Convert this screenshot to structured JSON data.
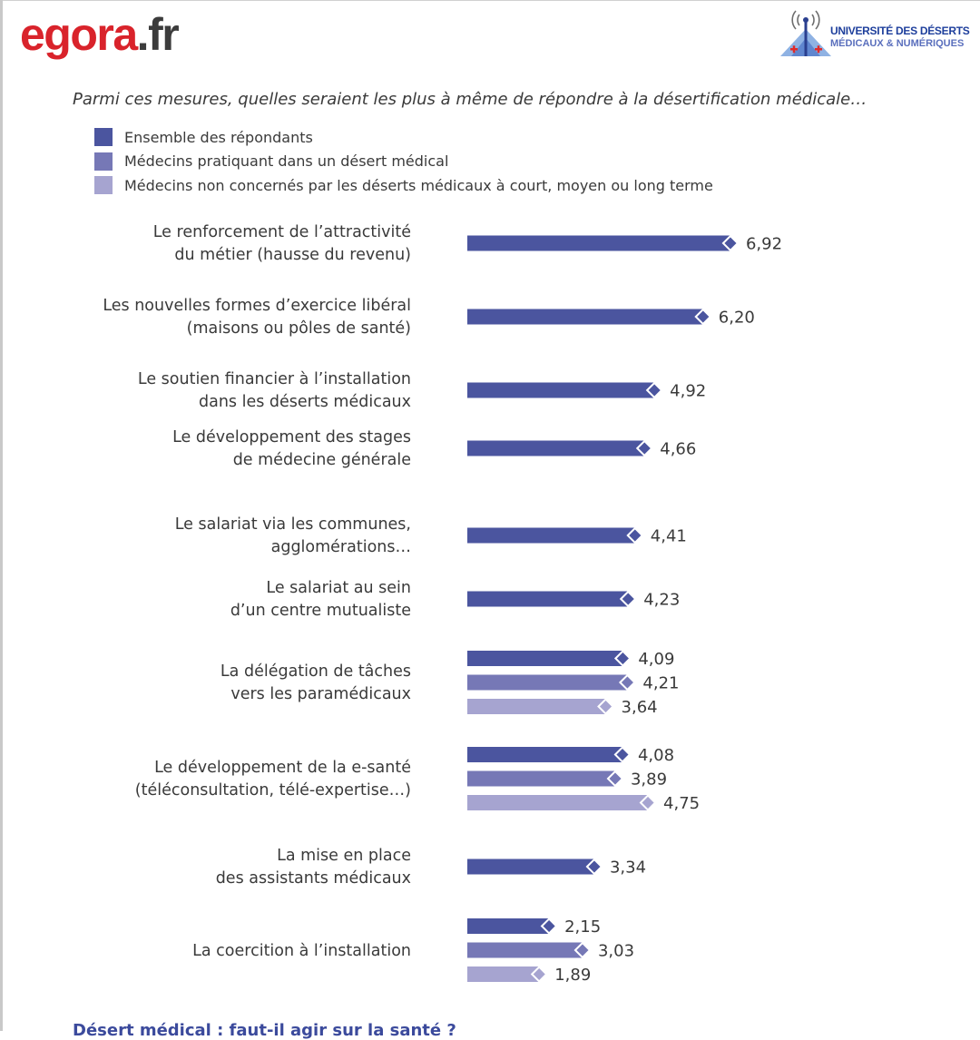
{
  "header": {
    "brand_red": "egora",
    "brand_dark": ".fr",
    "logo_line1": "UNIVERSITÉ DES DÉSERTS",
    "logo_line2": "MÉDICAUX & NUMÉRIQUES"
  },
  "colors": {
    "brand": "#d9232b",
    "series1": "#4b559f",
    "series2": "#7678b6",
    "series3": "#a6a4d0"
  },
  "footer": {
    "cut_text": "Désert médical : faut-il agir sur la santé ?"
  },
  "chart_data": {
    "type": "bar",
    "orientation": "horizontal",
    "title": "Parmi ces mesures, quelles seraient les plus à même de répondre à la désertification médicale…",
    "legend_position": "top-left",
    "grid": false,
    "series": [
      {
        "name": "Ensemble des répondants",
        "color": "#4b559f"
      },
      {
        "name": "Médecins pratiquant dans un désert médical",
        "color": "#7678b6"
      },
      {
        "name": "Médecins non concernés par les déserts médicaux à court, moyen ou long terme",
        "color": "#a6a4d0"
      }
    ],
    "categories": [
      {
        "lines": [
          "Le renforcement de l’attractivité",
          "du métier (hausse du revenu)"
        ],
        "values": [
          6.92
        ],
        "labels": [
          "6,92"
        ]
      },
      {
        "lines": [
          "Les nouvelles formes d’exercice libéral",
          "(maisons ou pôles de santé)"
        ],
        "values": [
          6.2
        ],
        "labels": [
          "6,20"
        ]
      },
      {
        "lines": [
          "Le soutien financier à l’installation",
          "dans les déserts médicaux"
        ],
        "values": [
          4.92
        ],
        "labels": [
          "4,92"
        ]
      },
      {
        "lines": [
          "Le développement des stages",
          "de médecine générale"
        ],
        "values": [
          4.66
        ],
        "labels": [
          "4,66"
        ]
      },
      {
        "lines": [
          "Le salariat via les communes,",
          "agglomérations…"
        ],
        "values": [
          4.41
        ],
        "labels": [
          "4,41"
        ]
      },
      {
        "lines": [
          "Le salariat au sein",
          "d’un centre mutualiste"
        ],
        "values": [
          4.23
        ],
        "labels": [
          "4,23"
        ]
      },
      {
        "lines": [
          "La délégation de tâches",
          "vers les paramédicaux"
        ],
        "values": [
          4.09,
          4.21,
          3.64
        ],
        "labels": [
          "4,09",
          "4,21",
          "3,64"
        ]
      },
      {
        "lines": [
          "Le développement de la e-santé",
          "(téléconsultation, télé-expertise…)"
        ],
        "values": [
          4.08,
          3.89,
          4.75
        ],
        "labels": [
          "4,08",
          "3,89",
          "4,75"
        ]
      },
      {
        "lines": [
          "La mise en place",
          "des assistants médicaux"
        ],
        "values": [
          3.34
        ],
        "labels": [
          "3,34"
        ]
      },
      {
        "lines": [
          "La coercition à l’installation"
        ],
        "values": [
          2.15,
          3.03,
          1.89
        ],
        "labels": [
          "2,15",
          "3,03",
          "1,89"
        ]
      }
    ]
  }
}
